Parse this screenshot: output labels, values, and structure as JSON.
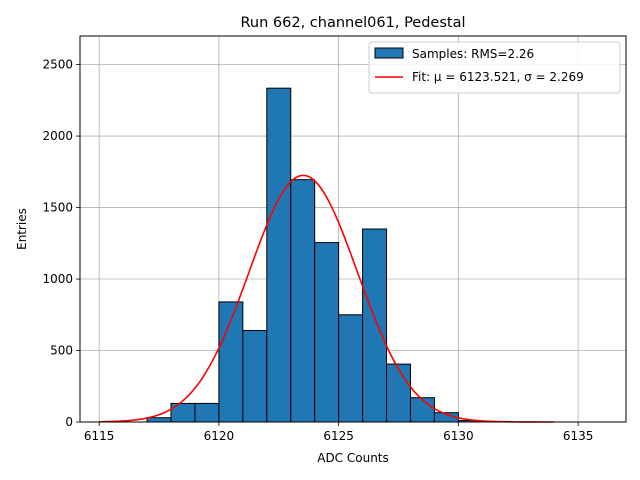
{
  "chart_data": {
    "type": "bar",
    "title": "Run 662, channel061, Pedestal",
    "xlabel": "ADC Counts",
    "ylabel": "Entries",
    "xlim": [
      6114.2,
      6137.0
    ],
    "ylim": [
      0,
      2700
    ],
    "xticks": [
      6115,
      6120,
      6125,
      6130,
      6135
    ],
    "yticks": [
      0,
      500,
      1000,
      1500,
      2000,
      2500
    ],
    "grid": true,
    "legend_position": "top-right",
    "bin_width": 1,
    "bins": [
      {
        "x0": 6117,
        "count": 30
      },
      {
        "x0": 6118,
        "count": 130
      },
      {
        "x0": 6119,
        "count": 130
      },
      {
        "x0": 6120,
        "count": 840
      },
      {
        "x0": 6121,
        "count": 640
      },
      {
        "x0": 6122,
        "count": 2335
      },
      {
        "x0": 6123,
        "count": 1695
      },
      {
        "x0": 6124,
        "count": 1255
      },
      {
        "x0": 6125,
        "count": 750
      },
      {
        "x0": 6126,
        "count": 1350
      },
      {
        "x0": 6127,
        "count": 405
      },
      {
        "x0": 6128,
        "count": 170
      },
      {
        "x0": 6129,
        "count": 65
      },
      {
        "x0": 6130,
        "count": 10
      }
    ],
    "fit": {
      "mu": 6123.521,
      "sigma": 2.269,
      "amplitude": 1725,
      "x_range": [
        6115,
        6134
      ]
    },
    "series": [
      {
        "name": "Samples: RMS=2.26",
        "kind": "histogram",
        "color": "#1f77b4"
      },
      {
        "name": "Fit: μ = 6123.521, σ = 2.269",
        "kind": "line",
        "color": "#ff0000"
      }
    ]
  }
}
